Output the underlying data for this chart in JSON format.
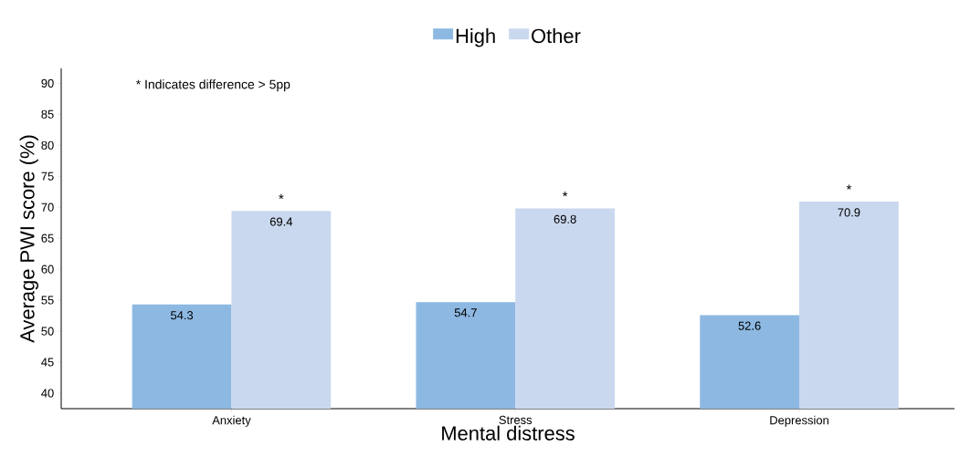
{
  "chart_data": {
    "type": "bar",
    "xlabel": "Mental distress",
    "ylabel": "Average PWI score (%)",
    "categories": [
      "Anxiety",
      "Stress",
      "Depression"
    ],
    "series": [
      {
        "name": "High",
        "color": "#8db8e2",
        "values": [
          54.3,
          54.7,
          52.6
        ]
      },
      {
        "name": "Other",
        "color": "#c9d8ee",
        "values": [
          69.4,
          69.8,
          70.9
        ]
      }
    ],
    "ylim": [
      37.5,
      92.4
    ],
    "yticks": [
      40,
      45,
      50,
      55,
      60,
      65,
      70,
      75,
      80,
      85,
      90
    ],
    "data_labels": true,
    "legend": "top",
    "grid": false,
    "annotations": [
      "* Indicates difference > 5pp",
      "*",
      "*",
      "*"
    ]
  }
}
